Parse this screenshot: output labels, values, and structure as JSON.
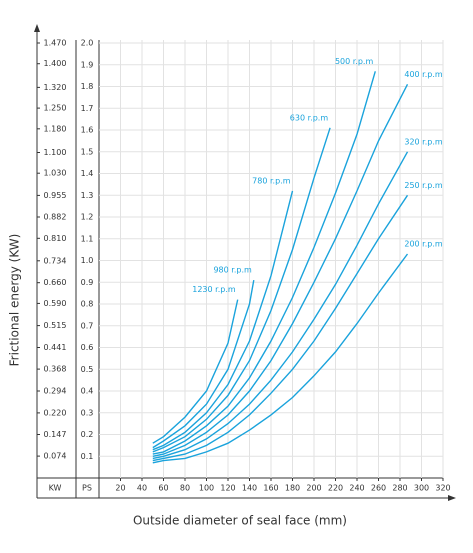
{
  "chart_data": {
    "type": "line",
    "y_label": "Frictional energy  (KW)",
    "x_label": "Outside diameter of seal face  (mm)",
    "y2_header": "KW",
    "y_header": "PS",
    "xlim": [
      0,
      320
    ],
    "xticks": [
      20,
      40,
      60,
      80,
      100,
      120,
      140,
      160,
      180,
      200,
      220,
      240,
      260,
      280,
      300,
      320
    ],
    "ylim": [
      0,
      2.0
    ],
    "yticks": [
      0.1,
      0.2,
      0.3,
      0.4,
      0.5,
      0.6,
      0.7,
      0.8,
      0.9,
      {
        "value": 1.0,
        "label": "1.0"
      },
      1.1,
      1.2,
      1.3,
      1.4,
      1.5,
      1.6,
      1.7,
      1.8,
      1.9,
      {
        "value": 2.0,
        "label": "2.0"
      }
    ],
    "y2lim": [
      0,
      1.47
    ],
    "y2ticks": [
      0.074,
      0.147,
      {
        "value": 0.22,
        "label": "0.220"
      },
      0.294,
      0.368,
      0.441,
      0.515,
      {
        "value": 0.59,
        "label": "0.590"
      },
      {
        "value": 0.66,
        "label": "0.660"
      },
      0.734,
      {
        "value": 0.81,
        "label": "0.810"
      },
      0.882,
      0.955,
      {
        "value": 1.03,
        "label": "1.030"
      },
      {
        "value": 1.1,
        "label": "1.100"
      },
      {
        "value": 1.18,
        "label": "1.180"
      },
      {
        "value": 1.25,
        "label": "1.250"
      },
      {
        "value": 1.32,
        "label": "1.320"
      },
      {
        "value": 1.4,
        "label": "1.400"
      },
      {
        "value": 1.47,
        "label": "1.470"
      }
    ],
    "grid": true,
    "color": "#1aa3dc",
    "series": [
      {
        "name": "1230 r.p.m",
        "x": [
          50,
          60,
          80,
          100,
          120,
          129
        ],
        "values": [
          0.16,
          0.19,
          0.28,
          0.4,
          0.62,
          0.82
        ]
      },
      {
        "name": "980 r.p.m",
        "x": [
          50,
          60,
          80,
          100,
          120,
          140,
          144
        ],
        "values": [
          0.14,
          0.17,
          0.24,
          0.34,
          0.5,
          0.8,
          0.91
        ]
      },
      {
        "name": "780 r.p.m",
        "x": [
          50,
          60,
          80,
          100,
          120,
          140,
          160,
          180
        ],
        "values": [
          0.13,
          0.15,
          0.21,
          0.3,
          0.43,
          0.63,
          0.93,
          1.32
        ]
      },
      {
        "name": "630 r.p.m",
        "x": [
          50,
          60,
          80,
          100,
          120,
          140,
          160,
          180,
          200,
          215
        ],
        "values": [
          0.12,
          0.14,
          0.19,
          0.27,
          0.38,
          0.54,
          0.77,
          1.05,
          1.38,
          1.61
        ]
      },
      {
        "name": "500 r.p.m",
        "x": [
          50,
          60,
          80,
          100,
          120,
          140,
          160,
          180,
          200,
          220,
          240,
          257
        ],
        "values": [
          0.11,
          0.12,
          0.17,
          0.24,
          0.33,
          0.46,
          0.63,
          0.83,
          1.06,
          1.31,
          1.58,
          1.87
        ]
      },
      {
        "name": "400 r.p.m",
        "x": [
          50,
          60,
          80,
          100,
          120,
          140,
          160,
          180,
          200,
          220,
          240,
          260,
          287
        ],
        "values": [
          0.1,
          0.11,
          0.15,
          0.21,
          0.29,
          0.4,
          0.54,
          0.71,
          0.9,
          1.1,
          1.32,
          1.55,
          1.81
        ]
      },
      {
        "name": "320 r.p.m",
        "x": [
          50,
          60,
          80,
          100,
          120,
          140,
          160,
          180,
          200,
          220,
          240,
          260,
          287
        ],
        "values": [
          0.09,
          0.1,
          0.13,
          0.18,
          0.25,
          0.34,
          0.45,
          0.58,
          0.73,
          0.89,
          1.07,
          1.26,
          1.5
        ]
      },
      {
        "name": "250 r.p.m",
        "x": [
          50,
          60,
          80,
          100,
          120,
          140,
          160,
          180,
          200,
          220,
          240,
          260,
          287
        ],
        "values": [
          0.08,
          0.09,
          0.11,
          0.15,
          0.21,
          0.29,
          0.39,
          0.5,
          0.63,
          0.78,
          0.94,
          1.1,
          1.3
        ]
      },
      {
        "name": "200 r.p.m",
        "x": [
          50,
          60,
          80,
          100,
          120,
          140,
          160,
          180,
          200,
          220,
          240,
          260,
          287
        ],
        "values": [
          0.07,
          0.08,
          0.09,
          0.12,
          0.16,
          0.22,
          0.29,
          0.37,
          0.47,
          0.58,
          0.71,
          0.85,
          1.03
        ]
      }
    ]
  }
}
